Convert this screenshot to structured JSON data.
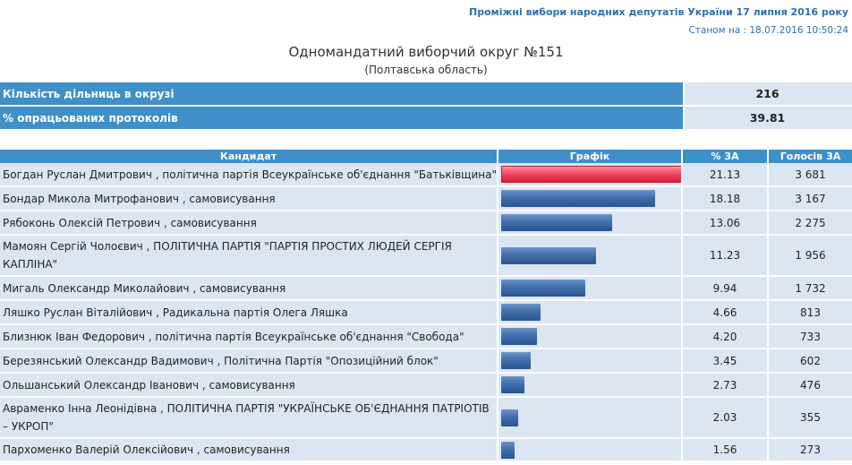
{
  "header": {
    "election_title": "Проміжні вибори народних депутатів України 17 липня 2016 року",
    "status": "Станом на : 18.07.2016 10:50:24",
    "district": "Одномандатний виборчий округ №151",
    "region": "(Полтавська область)"
  },
  "summary": [
    {
      "label": "Кількість дільниць в окрузі",
      "value": "216"
    },
    {
      "label": "% опрацьованих протоколів",
      "value": "39.81"
    }
  ],
  "results": {
    "columns": [
      "Кандидат",
      "Графік",
      "% ЗА",
      "Голосів ЗА"
    ],
    "lead_color": "#f0445e",
    "bar_color": "#3f6fad",
    "rows": [
      {
        "candidate": "Богдан Руслан Дмитрович , політична партія Всеукраїнське об'єднання \"Батьківщина\"",
        "percent": "21.13",
        "votes": "3 681"
      },
      {
        "candidate": "Бондар Микола Митрофанович , самовисування",
        "percent": "18.18",
        "votes": "3 167"
      },
      {
        "candidate": "Рябоконь Олексій Петрович , самовисування",
        "percent": "13.06",
        "votes": "2 275"
      },
      {
        "candidate": "Мамоян Сергій Чолоєвич , ПОЛІТИЧНА ПАРТІЯ \"ПАРТІЯ ПРОСТИХ ЛЮДЕЙ СЕРГІЯ КАПЛІНА\"",
        "percent": "11.23",
        "votes": "1 956"
      },
      {
        "candidate": "Мигаль Олександр Миколайович , самовисування",
        "percent": "9.94",
        "votes": "1 732"
      },
      {
        "candidate": "Ляшко Руслан Віталійович , Радикальна партія Олега Ляшка",
        "percent": "4.66",
        "votes": "813"
      },
      {
        "candidate": "Близнюк Іван Федорович , політична партія Всеукраїнське об'єднання \"Свобода\"",
        "percent": "4.20",
        "votes": "733"
      },
      {
        "candidate": "Березянський Олександр Вадимович , Політична Партія \"Опозиційний блок\"",
        "percent": "3.45",
        "votes": "602"
      },
      {
        "candidate": "Ольшанський Олександр Іванович , самовисування",
        "percent": "2.73",
        "votes": "476"
      },
      {
        "candidate": "Авраменко Інна Леонідівна , ПОЛІТИЧНА ПАРТІЯ \"УКРАЇНСЬКЕ ОБ'ЄДНАННЯ ПАТРІОТІВ – УКРОП\"",
        "percent": "2.03",
        "votes": "355"
      },
      {
        "candidate": "Пархоменко Валерій Олексійович , самовисування",
        "percent": "1.56",
        "votes": "273"
      }
    ]
  }
}
